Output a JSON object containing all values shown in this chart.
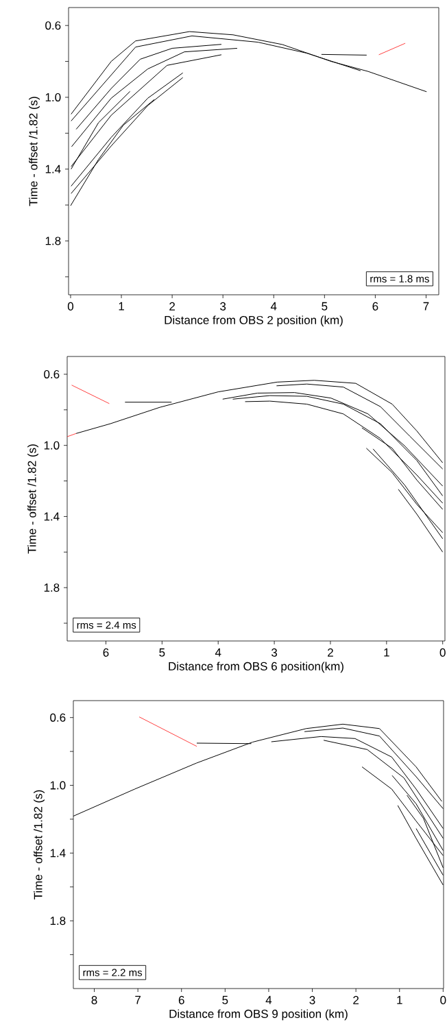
{
  "chart_data": [
    {
      "type": "line",
      "xlabel": "Distance from OBS 2 position (km)",
      "ylabel": "Time - offset /1.82 (s)",
      "annotations": [
        "rms = 1.8 ms"
      ],
      "marker": "none",
      "xlim": [
        -0.04,
        7.25
      ],
      "ylim": [
        2.1,
        0.5
      ],
      "xticks": [
        0,
        1,
        2,
        3,
        4,
        5,
        6,
        7
      ],
      "yticks": [
        0.6,
        {
          "value": 0.8,
          "label": null
        },
        {
          "value": 1.0,
          "label": "1.0"
        },
        {
          "value": 1.2,
          "label": null
        },
        1.4,
        {
          "value": 1.6,
          "label": null
        },
        1.8,
        {
          "value": 2.0,
          "label": null
        }
      ],
      "series": [
        {
          "color": "#000000",
          "x": [
            0.01,
            0.8,
            1.28,
            2.34,
            3.2,
            4.17,
            5.13,
            5.86,
            7.01
          ],
          "values": [
            1.094,
            0.8,
            0.686,
            0.634,
            0.652,
            0.706,
            0.8,
            0.856,
            0.969
          ]
        },
        {
          "color": "#000000",
          "x": [
            0.01,
            1.28,
            2.39,
            3.69,
            4.65,
            5.71
          ],
          "values": [
            1.132,
            0.72,
            0.658,
            0.693,
            0.754,
            0.852
          ]
        },
        {
          "color": "#000000",
          "x": [
            0.11,
            0.8,
            1.37,
            2.0,
            2.97
          ],
          "values": [
            1.178,
            0.951,
            0.788,
            0.727,
            0.705
          ]
        },
        {
          "color": "#000000",
          "x": [
            0.02,
            0.8,
            1.52,
            2.24,
            3.28
          ],
          "values": [
            1.275,
            1.005,
            0.842,
            0.747,
            0.727
          ]
        },
        {
          "color": "#000000",
          "x": [
            0.01,
            0.8,
            1.9,
            2.97
          ],
          "values": [
            1.386,
            1.1,
            0.822,
            0.763
          ]
        },
        {
          "color": "#000000",
          "x": [
            0.01,
            0.55,
            1.17
          ],
          "values": [
            1.4,
            1.141,
            0.967
          ]
        },
        {
          "color": "#000000",
          "x": [
            0.01,
            0.8,
            1.52,
            2.21
          ],
          "values": [
            1.495,
            1.223,
            1.005,
            0.864
          ]
        },
        {
          "color": "#000000",
          "x": [
            0.01,
            0.8,
            1.52,
            2.21
          ],
          "values": [
            1.536,
            1.271,
            1.046,
            0.89
          ]
        },
        {
          "color": "#000000",
          "x": [
            0.0,
            0.55,
            1.04,
            1.65
          ],
          "values": [
            1.604,
            1.346,
            1.155,
            1.012
          ]
        },
        {
          "color": "#000000",
          "x": [
            4.94,
            5.83
          ],
          "values": [
            0.761,
            0.765
          ]
        },
        {
          "color": "#ff0000",
          "x": [
            6.07,
            6.59
          ],
          "values": [
            0.763,
            0.699
          ]
        }
      ]
    },
    {
      "type": "line",
      "xlabel": "Distance from OBS 6 position(km)",
      "ylabel": "Time - offset /1.82 (s)",
      "annotations": [
        "rms = 2.4 ms"
      ],
      "marker": "none",
      "xlim": [
        6.69,
        -0.04
      ],
      "ylim": [
        2.1,
        0.5
      ],
      "xticks": [
        6,
        5,
        4,
        3,
        2,
        1,
        0
      ],
      "yticks": [
        0.6,
        {
          "value": 0.8,
          "label": null
        },
        {
          "value": 1.0,
          "label": "1.0"
        },
        {
          "value": 1.2,
          "label": null
        },
        1.4,
        {
          "value": 1.6,
          "label": null
        },
        1.8,
        {
          "value": 2.0,
          "label": null
        }
      ],
      "series": [
        {
          "color": "#ff0000",
          "x": [
            6.69,
            6.53
          ],
          "values": [
            0.951,
            0.933
          ]
        },
        {
          "color": "#000000",
          "x": [
            6.53,
            5.92,
            5.04,
            4.0,
            2.95,
            2.29,
            1.55,
            0.9,
            0.46,
            0.0
          ],
          "values": [
            0.933,
            0.878,
            0.786,
            0.699,
            0.644,
            0.634,
            0.651,
            0.768,
            0.919,
            1.098
          ]
        },
        {
          "color": "#000000",
          "x": [
            2.96,
            2.42,
            1.77,
            1.11,
            0.59,
            0.0
          ],
          "values": [
            0.665,
            0.655,
            0.672,
            0.782,
            0.947,
            1.133
          ]
        },
        {
          "color": "#000000",
          "x": [
            3.92,
            3.3,
            2.64,
            1.99,
            1.33,
            0.68,
            0.0
          ],
          "values": [
            0.74,
            0.706,
            0.703,
            0.734,
            0.823,
            1.002,
            1.229
          ]
        },
        {
          "color": "#000000",
          "x": [
            3.74,
            3.08,
            2.42,
            1.77,
            1.11,
            0.46,
            0.0
          ],
          "values": [
            0.74,
            0.72,
            0.724,
            0.768,
            0.878,
            1.085,
            1.284
          ]
        },
        {
          "color": "#000000",
          "x": [
            3.52,
            3.08,
            2.42,
            1.77,
            1.11,
            0.46,
            0.0
          ],
          "values": [
            0.754,
            0.751,
            0.768,
            0.823,
            0.961,
            1.167,
            1.325
          ]
        },
        {
          "color": "#000000",
          "x": [
            1.44,
            0.9,
            0.46,
            0.0
          ],
          "values": [
            0.901,
            1.016,
            1.195,
            1.36
          ]
        },
        {
          "color": "#000000",
          "x": [
            1.36,
            0.9,
            0.46,
            0.0
          ],
          "values": [
            1.016,
            1.153,
            1.332,
            1.491
          ]
        },
        {
          "color": "#000000",
          "x": [
            1.24,
            0.68,
            0.0
          ],
          "values": [
            1.02,
            1.222,
            1.525
          ]
        },
        {
          "color": "#000000",
          "x": [
            0.79,
            0.46,
            0.0
          ],
          "values": [
            1.247,
            1.387,
            1.6
          ]
        },
        {
          "color": "#000000",
          "x": [
            5.66,
            4.83
          ],
          "values": [
            0.757,
            0.757
          ]
        },
        {
          "color": "#ff0000",
          "x": [
            6.61,
            5.94
          ],
          "values": [
            0.661,
            0.765
          ]
        }
      ]
    },
    {
      "type": "line",
      "xlabel": "Distance from OBS 9 position (km)",
      "ylabel": "Time - offset /1.82 (s)",
      "annotations": [
        "rms = 2.2 ms"
      ],
      "marker": "none",
      "xlim": [
        8.48,
        -0.01
      ],
      "ylim": [
        2.2,
        0.5
      ],
      "xticks": [
        8,
        7,
        6,
        5,
        4,
        3,
        2,
        1,
        0
      ],
      "yticks": [
        0.6,
        {
          "value": 0.8,
          "label": null
        },
        {
          "value": 1.0,
          "label": "1.0"
        },
        {
          "value": 1.2,
          "label": null
        },
        1.4,
        {
          "value": 1.6,
          "label": null
        },
        1.8,
        {
          "value": 2.0,
          "label": null
        }
      ],
      "series": [
        {
          "color": "#000000",
          "x": [
            8.48,
            7.07,
            5.66,
            4.37,
            3.14,
            2.3,
            1.46,
            0.62,
            0.03
          ],
          "values": [
            1.182,
            1.022,
            0.869,
            0.745,
            0.665,
            0.639,
            0.665,
            0.891,
            1.095
          ]
        },
        {
          "color": "#000000",
          "x": [
            3.18,
            2.3,
            1.46,
            0.62,
            0.0
          ],
          "values": [
            0.683,
            0.662,
            0.709,
            0.949,
            1.138
          ]
        },
        {
          "color": "#000000",
          "x": [
            3.94,
            2.8,
            2.02,
            1.18,
            0.62,
            0.0
          ],
          "values": [
            0.743,
            0.712,
            0.724,
            0.833,
            1.022,
            1.255
          ]
        },
        {
          "color": "#000000",
          "x": [
            2.74,
            1.74,
            0.9,
            0.0
          ],
          "values": [
            0.734,
            0.789,
            0.956,
            1.313
          ]
        },
        {
          "color": "#000000",
          "x": [
            1.86,
            1.18,
            0.62,
            0.0
          ],
          "values": [
            0.891,
            1.022,
            1.211,
            1.415
          ]
        },
        {
          "color": "#000000",
          "x": [
            1.17,
            0.62,
            0.0
          ],
          "values": [
            0.942,
            1.109,
            1.385
          ]
        },
        {
          "color": "#000000",
          "x": [
            0.83,
            0.45,
            0.0
          ],
          "values": [
            1.058,
            1.196,
            1.487
          ]
        },
        {
          "color": "#000000",
          "x": [
            1.04,
            0.62,
            0.0
          ],
          "values": [
            1.119,
            1.313,
            1.589
          ]
        },
        {
          "color": "#000000",
          "x": [
            0.62,
            0.0
          ],
          "values": [
            1.255,
            1.531
          ]
        },
        {
          "color": "#000000",
          "x": [
            5.65,
            4.4
          ],
          "values": [
            0.751,
            0.754
          ]
        },
        {
          "color": "#ff0000",
          "x": [
            6.97,
            5.65
          ],
          "values": [
            0.596,
            0.77
          ]
        }
      ]
    }
  ]
}
